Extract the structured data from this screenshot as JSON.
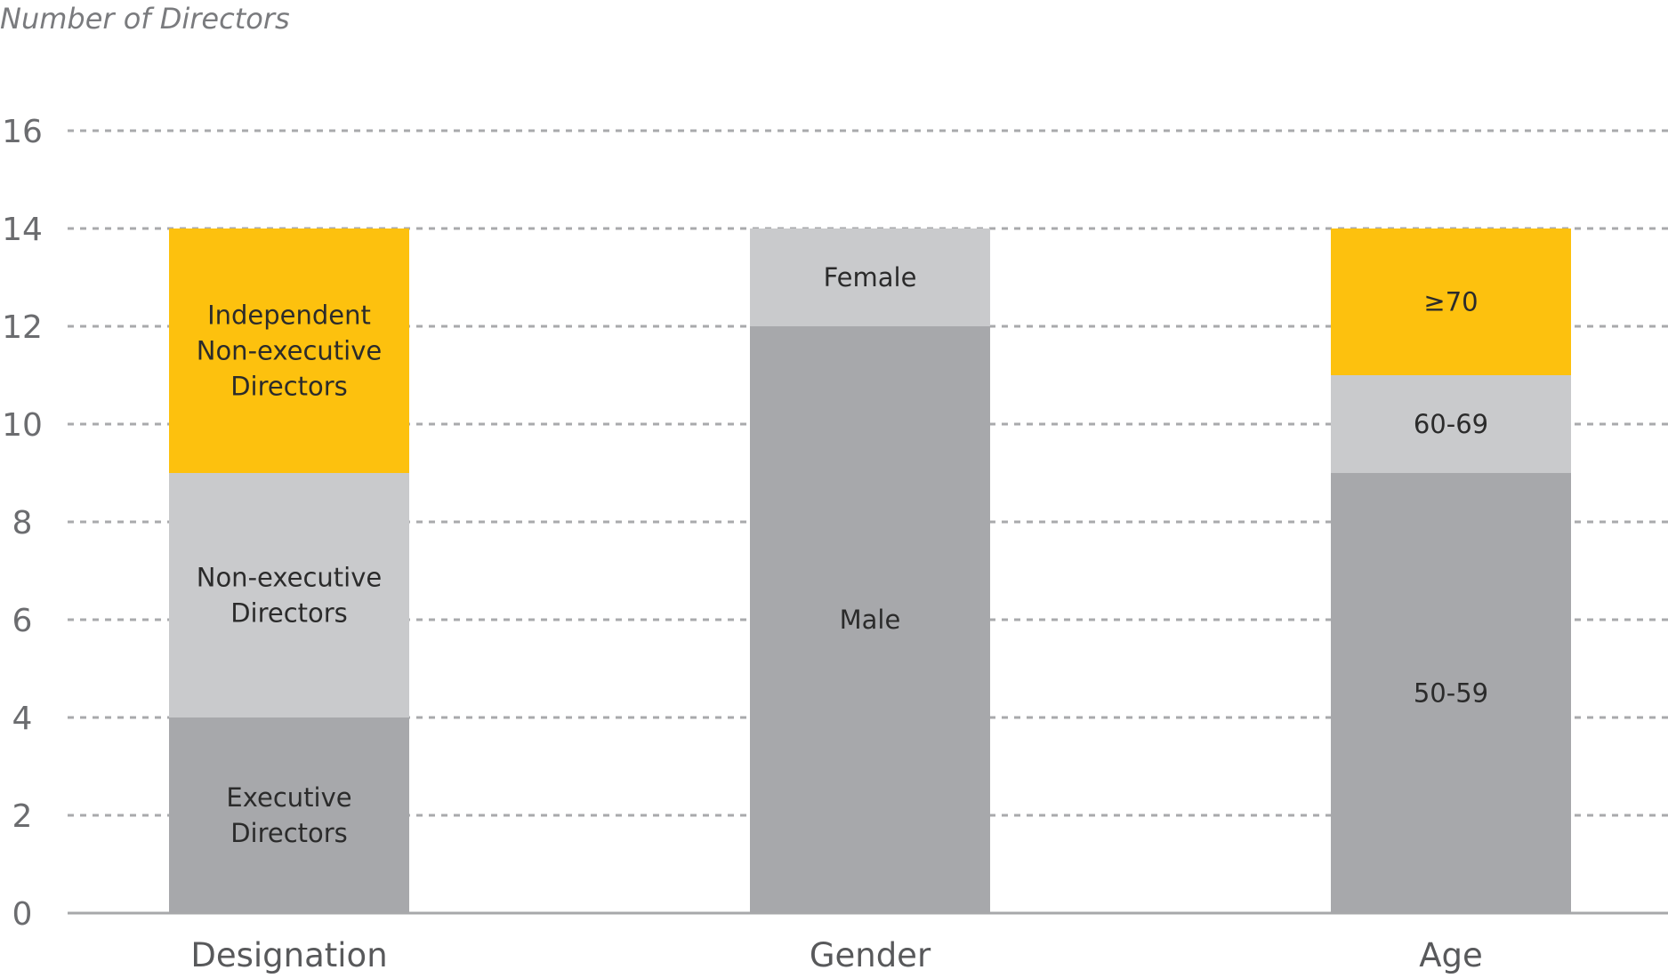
{
  "chart_data": {
    "type": "bar",
    "stacked": true,
    "ylabel": "Number of Directors",
    "xlabel": "",
    "ylim": [
      0,
      16
    ],
    "yticks": [
      "0",
      "2",
      "4",
      "6",
      "8",
      "10",
      "12",
      "14",
      "16"
    ],
    "grid": true,
    "legend": "none (segment labels inside bars)",
    "categories": [
      {
        "name": "Designation",
        "segments": [
          {
            "label": "Executive Directors",
            "value": 4,
            "color": "#a7a8ab"
          },
          {
            "label": "Non-executive Directors",
            "value": 5,
            "color": "#c9cacc"
          },
          {
            "label": "Independent Non-executive Directors",
            "value": 5,
            "color": "#fdc10e"
          }
        ]
      },
      {
        "name": "Gender",
        "segments": [
          {
            "label": "Male",
            "value": 12,
            "color": "#a7a8ab"
          },
          {
            "label": "Female",
            "value": 2,
            "color": "#c9cacc"
          }
        ]
      },
      {
        "name": "Age",
        "segments": [
          {
            "label": "50-59",
            "value": 9,
            "color": "#a7a8ab"
          },
          {
            "label": "60-69",
            "value": 2,
            "color": "#c9cacc"
          },
          {
            "label": "≥70",
            "value": 3,
            "color": "#fdc10e"
          }
        ]
      }
    ]
  }
}
